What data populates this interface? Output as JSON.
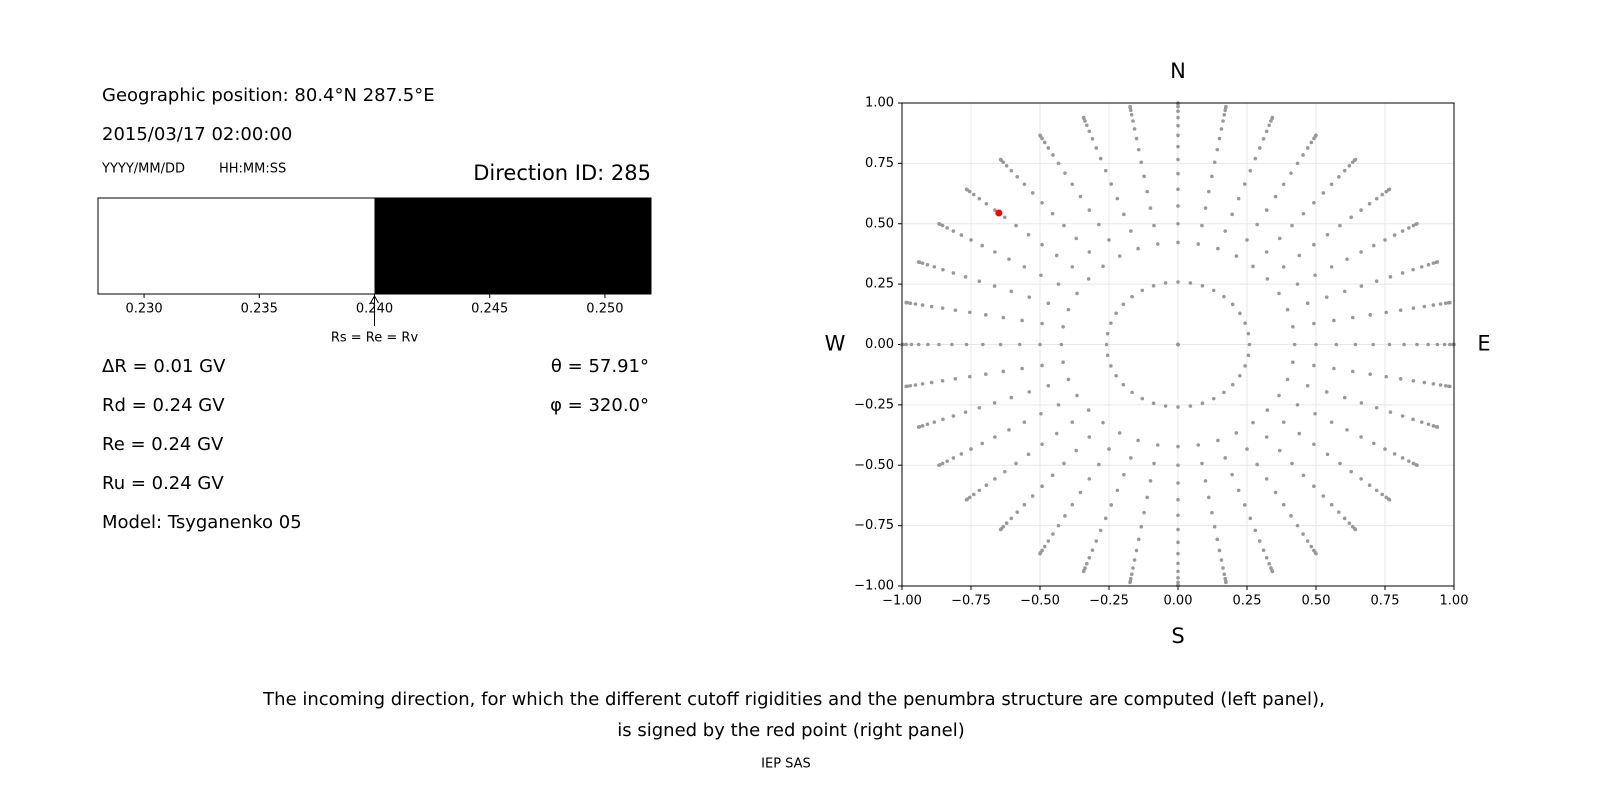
{
  "chart_data": [
    {
      "type": "penumbra",
      "position": "Geographic position: 80.4°N 287.5°E",
      "datetime": "2015/03/17 02:00:00",
      "date_format": "YYYY/MM/DD",
      "time_format": "HH:MM:SS",
      "title": "Direction ID: 285",
      "xlim": [
        0.228,
        0.252
      ],
      "xticks": [
        {
          "value": 0.23,
          "label": "0.230"
        },
        {
          "value": 0.235,
          "label": "0.235"
        },
        {
          "value": 0.24,
          "label": "0.240"
        },
        {
          "value": 0.245,
          "label": "0.245"
        },
        {
          "value": 0.25,
          "label": "0.250"
        }
      ],
      "cutoff": 0.24,
      "cutoff_label": "Rs = Re = Rv",
      "colors": [
        "#ffffff",
        "#000000"
      ],
      "info": [
        "ΔR = 0.01 GV",
        "Rd = 0.24 GV",
        "Re = 0.24 GV",
        "Ru = 0.24 GV",
        "Model: Tsyganenko 05"
      ],
      "angles": [
        {
          "value": 57.91,
          "label": "θ = 57.91°"
        },
        {
          "value": 320.0,
          "label": "φ = 320.0°"
        }
      ]
    },
    {
      "type": "sky-map",
      "xlim": [
        -1,
        1
      ],
      "ylim": [
        -1,
        1
      ],
      "xticks": [
        {
          "value": -1,
          "label": "−1.00"
        },
        {
          "value": -0.75,
          "label": "−0.75"
        },
        {
          "value": -0.5,
          "label": "−0.50"
        },
        {
          "value": -0.25,
          "label": "−0.25"
        },
        {
          "value": 0,
          "label": "0.00"
        },
        {
          "value": 0.25,
          "label": "0.25"
        },
        {
          "value": 0.5,
          "label": "0.50"
        },
        {
          "value": 0.75,
          "label": "0.75"
        },
        {
          "value": 1,
          "label": "1.00"
        }
      ],
      "yticks": [
        {
          "value": -1,
          "label": "−1.00"
        },
        {
          "value": -0.75,
          "label": "−0.75"
        },
        {
          "value": -0.5,
          "label": "−0.50"
        },
        {
          "value": -0.25,
          "label": "−0.25"
        },
        {
          "value": 0,
          "label": "0.00"
        },
        {
          "value": 0.25,
          "label": "0.25"
        },
        {
          "value": 0.5,
          "label": "0.50"
        },
        {
          "value": 0.75,
          "label": "0.75"
        },
        {
          "value": 1,
          "label": "1.00"
        }
      ],
      "grid": true,
      "directions": [
        "N",
        "S",
        "W",
        "E"
      ],
      "zenith": [
        0,
        15,
        25,
        30,
        35,
        40,
        45,
        50,
        55,
        60,
        65,
        70,
        75,
        80,
        85,
        90
      ],
      "azimuth": [
        0,
        10,
        20,
        30,
        40,
        50,
        60,
        70,
        80,
        90,
        100,
        110,
        120,
        130,
        140,
        150,
        160,
        170,
        180,
        190,
        200,
        210,
        220,
        230,
        240,
        250,
        260,
        270,
        280,
        290,
        300,
        310,
        320,
        330,
        340,
        350
      ],
      "point_color": "#999999",
      "marker_color": "#ff0000"
    }
  ],
  "caption": [
    "The incoming direction, for which the different cutoff rigidities and the penumbra structure are computed (left panel),",
    "is signed by the red point (right panel)"
  ],
  "footer": "IEP SAS"
}
